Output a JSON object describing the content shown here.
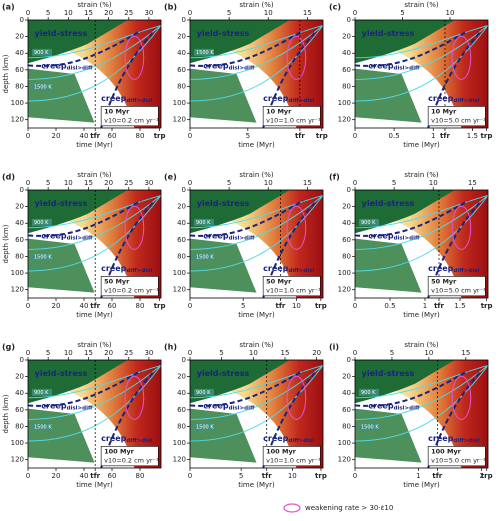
{
  "chart_data": {
    "type": "heatmap-grid",
    "xlabel": "time (Myr)",
    "x2label": "strain (%)",
    "ylabel": "depth (km)",
    "ylim": [
      0,
      130
    ],
    "yticks": [
      0,
      20,
      40,
      60,
      80,
      100,
      120
    ],
    "legend": "weakening rate > 30·ε̇10",
    "panels": [
      {
        "label": "(a)",
        "xlim": [
          0,
          95
        ],
        "xticks": [
          0,
          20,
          40,
          {
            "value": 48,
            "label": "tfr"
          },
          60,
          80,
          {
            "value": 94,
            "label": "trp"
          }
        ],
        "x2lim": [
          0,
          33
        ],
        "x2ticks": [
          0,
          5,
          10,
          15,
          20,
          25,
          30
        ],
        "annotations": [
          {
            "text": "yield-stress"
          },
          {
            "text": "creep",
            "sub": "disl>diff"
          },
          {
            "text": "creep",
            "sub": "diff>disl"
          }
        ],
        "temps": [
          "900 K",
          "1500 K"
        ],
        "box": [
          "10 Myr",
          "v10=0.2 cm yr⁻¹"
        ]
      },
      {
        "label": "(b)",
        "xlim": [
          0,
          11.5
        ],
        "xticks": [
          0,
          5,
          {
            "value": 9.5,
            "label": "tfr"
          },
          {
            "value": 11.4,
            "label": "trp"
          }
        ],
        "x2lim": [
          0,
          17
        ],
        "x2ticks": [
          0,
          5,
          10,
          15
        ],
        "annotations": [
          {
            "text": "yield-stress"
          },
          {
            "text": "creep",
            "sub": "disl>diff"
          },
          {
            "text": "creep",
            "sub": "diff>disl"
          }
        ],
        "temps": [
          "1500 K"
        ],
        "box": [
          "10 Myr",
          "v10=1.0 cm yr⁻¹"
        ]
      },
      {
        "label": "(c)",
        "xlim": [
          0,
          1.7
        ],
        "xticks": [
          0,
          0.5,
          1,
          {
            "value": 1.15,
            "label": "tfr"
          },
          1.5,
          {
            "value": 1.68,
            "label": "trp"
          }
        ],
        "x2lim": [
          0,
          14
        ],
        "x2ticks": [
          0,
          5,
          10
        ],
        "annotations": [
          {
            "text": "yield-stress"
          },
          {
            "text": "creep",
            "sub": "disl>diff"
          },
          {
            "text": "creep",
            "sub": "diff>disl"
          }
        ],
        "temps": [],
        "box": [
          "10 Myr",
          "v10=5.0 cm yr⁻¹"
        ]
      },
      {
        "label": "(d)",
        "xlim": [
          0,
          95
        ],
        "xticks": [
          0,
          20,
          40,
          {
            "value": 48,
            "label": "tfr"
          },
          60,
          80,
          {
            "value": 94,
            "label": "trp"
          }
        ],
        "x2lim": [
          0,
          33
        ],
        "x2ticks": [
          0,
          5,
          10,
          15,
          20,
          25,
          30
        ],
        "annotations": [
          {
            "text": "yield-stress"
          },
          {
            "text": "creep",
            "sub": "disl>diff"
          },
          {
            "text": "creep",
            "sub": "diff>disl"
          }
        ],
        "temps": [
          "900 K",
          "1500 K"
        ],
        "box": [
          "50 Myr",
          "v10=0.2 cm yr⁻¹"
        ]
      },
      {
        "label": "(e)",
        "xlim": [
          0,
          12.5
        ],
        "xticks": [
          0,
          5,
          {
            "value": 8.5,
            "label": "tfr"
          },
          10,
          {
            "value": 12.3,
            "label": "trp"
          }
        ],
        "x2lim": [
          0,
          17
        ],
        "x2ticks": [
          0,
          5,
          10,
          15
        ],
        "annotations": [
          {
            "text": "yield-stress"
          },
          {
            "text": "creep",
            "sub": "disl>diff"
          },
          {
            "text": "creep",
            "sub": "diff>disl"
          }
        ],
        "temps": [
          "900 K",
          "1500 K"
        ],
        "box": [
          "50 Myr",
          "v10=1.0 cm yr⁻¹"
        ]
      },
      {
        "label": "(f)",
        "xlim": [
          0,
          1.9
        ],
        "xticks": [
          0,
          0.5,
          1,
          {
            "value": 1.2,
            "label": "tfr"
          },
          1.5,
          {
            "value": 1.88,
            "label": "trp"
          }
        ],
        "x2lim": [
          0,
          17
        ],
        "x2ticks": [
          0,
          5,
          10,
          15
        ],
        "annotations": [
          {
            "text": "yield-stress"
          },
          {
            "text": "creep",
            "sub": "disl>diff"
          },
          {
            "text": "creep",
            "sub": "diff>disl"
          }
        ],
        "temps": [
          "900 K"
        ],
        "box": [
          "50 Myr",
          "v10=5.0 cm yr⁻¹"
        ]
      },
      {
        "label": "(g)",
        "xlim": [
          0,
          95
        ],
        "xticks": [
          0,
          20,
          40,
          {
            "value": 48,
            "label": "tfr"
          },
          60,
          80
        ],
        "x2lim": [
          0,
          33
        ],
        "x2ticks": [
          0,
          5,
          10,
          15,
          20,
          25,
          30
        ],
        "annotations": [
          {
            "text": "yield-stress"
          },
          {
            "text": "creep",
            "sub": "disl>diff"
          },
          {
            "text": "creep",
            "sub": "diff>disl"
          }
        ],
        "temps": [
          "900 K",
          "1500 K"
        ],
        "box": [
          "100 Myr",
          "v10=0.2 cm yr⁻¹"
        ]
      },
      {
        "label": "(h)",
        "xlim": [
          0,
          13
        ],
        "xticks": [
          0,
          5,
          {
            "value": 7.5,
            "label": "tfr"
          },
          10,
          {
            "value": 12.8,
            "label": "trp"
          }
        ],
        "x2lim": [
          0,
          21
        ],
        "x2ticks": [
          0,
          5,
          10,
          15,
          20
        ],
        "annotations": [
          {
            "text": "yield-stress"
          },
          {
            "text": "creep",
            "sub": "disl>diff"
          },
          {
            "text": "creep",
            "sub": "diff>disl"
          }
        ],
        "temps": [
          "900 K",
          "1500 K"
        ],
        "box": [
          "100 Myr",
          "v10=1.0 cm yr⁻¹"
        ]
      },
      {
        "label": "(i)",
        "xlim": [
          0,
          2.1
        ],
        "xticks": [
          0,
          1,
          {
            "value": 1.3,
            "label": "tfr"
          },
          2,
          {
            "value": 2.08,
            "label": "trp"
          }
        ],
        "x2lim": [
          0,
          18
        ],
        "x2ticks": [
          0,
          5,
          10,
          15
        ],
        "annotations": [
          {
            "text": "yield-stress"
          },
          {
            "text": "creep",
            "sub": "disl>diff"
          },
          {
            "text": "creep",
            "sub": "diff>disl"
          }
        ],
        "temps": [
          "900 K",
          "1500 K"
        ],
        "box": [
          "100 Myr",
          "v10=5.0 cm yr⁻¹"
        ]
      }
    ]
  }
}
